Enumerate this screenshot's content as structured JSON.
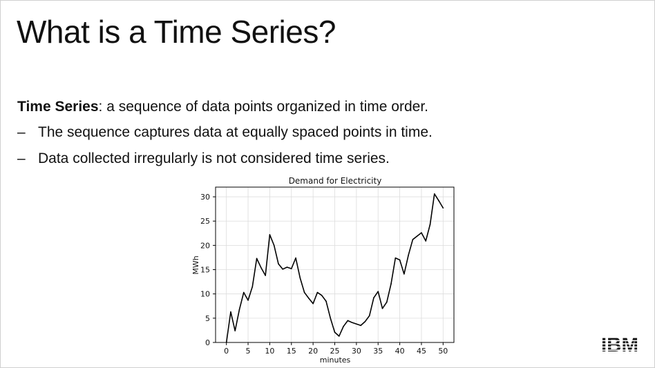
{
  "slide": {
    "title": "What is a Time Series?",
    "definition_term": "Time Series",
    "definition_text": ": a sequence of data points organized in time order.",
    "bullets": [
      {
        "marker": "–",
        "text": "The sequence captures data at equally spaced points in time."
      },
      {
        "marker": "–",
        "text": "Data collected irregularly is not considered time series."
      }
    ],
    "logo_text": "IBM"
  },
  "chart_data": {
    "type": "line",
    "title": "Demand for Electricity",
    "xlabel": "minutes",
    "ylabel": "MWh",
    "xlim": [
      -2.5,
      52.5
    ],
    "ylim": [
      0,
      32
    ],
    "xticks": [
      0,
      5,
      10,
      15,
      20,
      25,
      30,
      35,
      40,
      45,
      50
    ],
    "yticks": [
      0,
      5,
      10,
      15,
      20,
      25,
      30
    ],
    "grid": true,
    "line_color": "#000000",
    "series": [
      {
        "x": [
          0,
          1,
          2,
          3,
          4,
          5,
          6,
          7,
          8,
          9,
          10,
          11,
          12,
          13,
          14,
          15,
          16,
          17,
          18,
          19,
          20,
          21,
          22,
          23,
          24,
          25,
          26,
          27,
          28,
          29,
          30,
          31,
          32,
          33,
          34,
          35,
          36,
          37,
          38,
          39,
          40,
          41,
          42,
          43,
          44,
          45,
          46,
          47,
          48,
          49,
          50
        ],
        "values": [
          0,
          6.3,
          2.4,
          6.8,
          10.3,
          8.7,
          11.5,
          17.3,
          15.4,
          13.8,
          22.2,
          20,
          16.2,
          15.1,
          15.5,
          15.2,
          17.4,
          13.3,
          10.3,
          9.1,
          8,
          10.3,
          9.7,
          8.5,
          5,
          2.1,
          1.3,
          3.3,
          4.5,
          4.1,
          3.8,
          3.5,
          4.3,
          5.5,
          9.2,
          10.5,
          7,
          8.3,
          12.1,
          17.4,
          17,
          14.1,
          18,
          21.2,
          21.9,
          22.6,
          20.9,
          24.3,
          30.6,
          29.2,
          27.7
        ]
      }
    ]
  }
}
